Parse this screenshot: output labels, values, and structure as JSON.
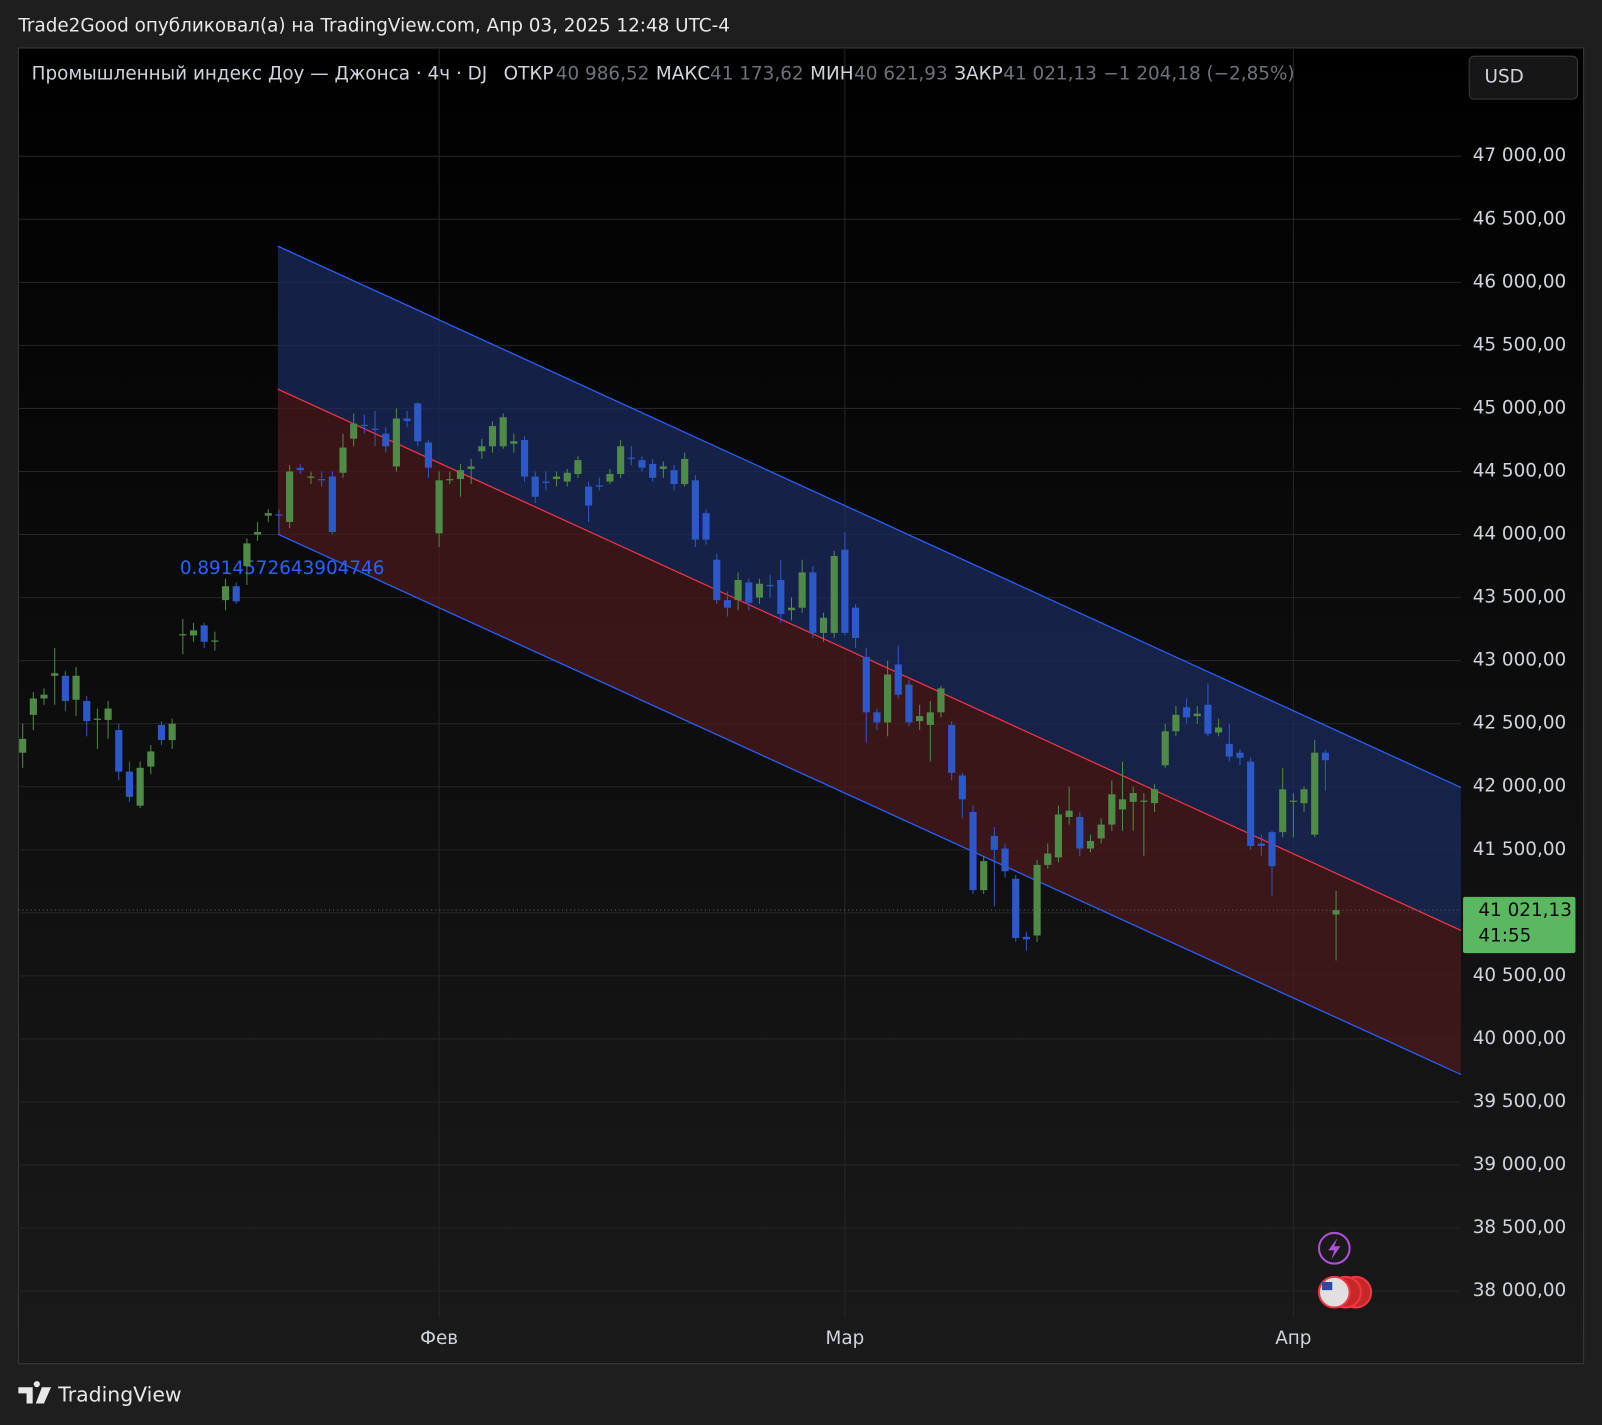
{
  "header": {
    "publisher": "Trade2Good опубликовал(а) на TradingView.com, Апр 03, 2025 12:48 UTC-4",
    "currency_button": "USD",
    "footer_brand": "TradingView"
  },
  "chart_data": {
    "type": "candlestick",
    "legend": {
      "symbol": "Промышленный индекс Доу — Джонса · 4ч · DJ",
      "open_label": "ОТКР",
      "open": "40 986,52",
      "high_label": "МАКС",
      "high": "41 173,62",
      "low_label": "МИН",
      "low": "40 621,93",
      "close_label": "ЗАКР",
      "close": "41 021,13",
      "change": "−1 204,18 (−2,85%)"
    },
    "x": [
      0,
      1,
      2,
      3,
      4,
      5,
      6,
      7,
      8,
      9,
      10,
      11,
      12,
      13,
      14,
      15,
      16,
      17,
      18,
      19,
      20,
      21,
      22,
      23,
      24,
      25,
      26,
      27,
      28,
      29,
      30,
      31,
      32,
      33,
      34,
      35,
      36,
      37,
      38,
      39,
      40,
      41,
      42,
      43,
      44,
      45,
      46,
      47,
      48,
      49,
      50,
      51,
      52,
      53,
      54,
      55,
      56,
      57,
      58,
      59,
      60,
      61,
      62,
      63,
      64,
      65,
      66,
      67,
      68,
      69,
      70,
      71,
      72,
      73,
      74,
      75,
      76,
      77,
      78,
      79,
      80,
      81,
      82,
      83,
      84,
      85,
      86,
      87,
      88,
      89,
      90,
      91,
      92,
      93,
      94,
      95,
      96,
      97,
      98,
      99,
      100,
      101,
      102,
      103,
      104,
      105,
      106,
      107,
      108,
      109,
      110,
      111,
      112,
      113,
      114,
      115,
      116,
      117,
      118,
      119,
      120,
      121,
      122,
      123
    ],
    "open": [
      42270,
      42570,
      42700,
      42880,
      42880,
      42690,
      42680,
      42530,
      42530,
      42450,
      42120,
      41850,
      42160,
      42490,
      42370,
      43200,
      43200,
      43280,
      43150,
      43480,
      43590,
      43750,
      44000,
      44150,
      44160,
      44100,
      44530,
      44450,
      44440,
      44460,
      44490,
      44760,
      44870,
      44840,
      44800,
      44540,
      44920,
      45040,
      44730,
      44010,
      44430,
      44440,
      44520,
      44660,
      44700,
      44700,
      44720,
      44750,
      44460,
      44420,
      44440,
      44420,
      44480,
      44380,
      44390,
      44420,
      44480,
      44610,
      44590,
      44560,
      44520,
      44510,
      44400,
      44430,
      44170,
      43800,
      43480,
      43480,
      43620,
      43500,
      43600,
      43640,
      43400,
      43420,
      43700,
      43220,
      43220,
      43880,
      43420,
      43030,
      42590,
      42510,
      42970,
      42810,
      42520,
      42490,
      42590,
      42490,
      42090,
      41800,
      41180,
      41610,
      41510,
      41270,
      40810,
      40820,
      41380,
      41440,
      41760,
      41760,
      41510,
      41590,
      41700,
      41820,
      41880,
      41880,
      41870,
      42170,
      42440,
      42630,
      42560,
      42650,
      42430,
      42340,
      42270,
      42200,
      41550,
      41640,
      41640,
      41880,
      41870,
      41620,
      42270,
      40986.52
    ],
    "high": [
      42500,
      42750,
      42780,
      43100,
      42920,
      42950,
      42720,
      42620,
      42680,
      42500,
      42200,
      42200,
      42330,
      42520,
      42540,
      43330,
      43300,
      43300,
      43230,
      43650,
      43620,
      43970,
      44100,
      44200,
      44200,
      44550,
      44560,
      44500,
      44500,
      44500,
      44800,
      44960,
      44950,
      44980,
      44850,
      45000,
      44980,
      45050,
      44750,
      44500,
      44500,
      44560,
      44600,
      44760,
      44900,
      44960,
      44800,
      44780,
      44500,
      44500,
      44500,
      44520,
      44620,
      44420,
      44450,
      44520,
      44750,
      44700,
      44620,
      44600,
      44580,
      44550,
      44650,
      44470,
      44200,
      43850,
      43550,
      43700,
      43650,
      43650,
      43680,
      43800,
      43500,
      43800,
      43750,
      43380,
      43870,
      44020,
      43450,
      43100,
      42620,
      43000,
      43120,
      42850,
      42650,
      42680,
      42800,
      42520,
      42110,
      41850,
      41450,
      41680,
      41550,
      41300,
      40850,
      41420,
      41550,
      41850,
      42000,
      41800,
      41620,
      41750,
      42050,
      42200,
      42000,
      41950,
      42020,
      42500,
      42640,
      42700,
      42640,
      42820,
      42540,
      42500,
      42300,
      42230,
      41620,
      41650,
      42150,
      41950,
      42000,
      42370,
      42290,
      41173.62
    ],
    "low": [
      42150,
      42450,
      42650,
      42650,
      42600,
      42560,
      42400,
      42300,
      42380,
      42050,
      41880,
      41830,
      42100,
      42330,
      42300,
      43050,
      43150,
      43100,
      43080,
      43400,
      43450,
      43600,
      43950,
      44100,
      44000,
      44050,
      44480,
      44400,
      44380,
      44000,
      44450,
      44700,
      44800,
      44700,
      44650,
      44500,
      44850,
      44700,
      44450,
      43900,
      44400,
      44300,
      44400,
      44600,
      44650,
      44680,
      44650,
      44420,
      44250,
      44350,
      44380,
      44380,
      44450,
      44100,
      44350,
      44400,
      44450,
      44550,
      44500,
      44420,
      44450,
      44350,
      44380,
      43900,
      43920,
      43450,
      43350,
      43400,
      43400,
      43450,
      43500,
      43300,
      43320,
      43380,
      43180,
      43150,
      43180,
      43200,
      43100,
      42350,
      42450,
      42400,
      42700,
      42480,
      42450,
      42200,
      42550,
      42050,
      41750,
      41150,
      41150,
      41050,
      41280,
      40770,
      40700,
      40770,
      41350,
      41400,
      41700,
      41450,
      41480,
      41550,
      41650,
      41650,
      41650,
      41450,
      41800,
      42150,
      42400,
      42500,
      42500,
      42400,
      42400,
      42200,
      42170,
      41500,
      41450,
      41130,
      41600,
      41600,
      41800,
      41600,
      41970,
      40621.93
    ],
    "close": [
      42380,
      42700,
      42730,
      42900,
      42680,
      42880,
      42520,
      42540,
      42620,
      42120,
      41920,
      42150,
      42280,
      42370,
      42500,
      43210,
      43240,
      43150,
      43160,
      43590,
      43470,
      43930,
      44020,
      44170,
      44150,
      44500,
      44510,
      44460,
      44430,
      44020,
      44690,
      44880,
      44860,
      44830,
      44700,
      44920,
      44900,
      44740,
      44530,
      44430,
      44440,
      44510,
      44540,
      44700,
      44860,
      44930,
      44740,
      44460,
      44300,
      44410,
      44460,
      44490,
      44590,
      44230,
      44380,
      44480,
      44700,
      44600,
      44530,
      44450,
      44540,
      44400,
      44600,
      43960,
      43960,
      43480,
      43420,
      43640,
      43460,
      43610,
      43590,
      43370,
      43420,
      43700,
      43220,
      43340,
      43830,
      43220,
      43180,
      42590,
      42510,
      42890,
      42730,
      42510,
      42560,
      42590,
      42780,
      42110,
      41900,
      41180,
      41410,
      41500,
      41330,
      40800,
      40790,
      41380,
      41470,
      41780,
      41810,
      41510,
      41570,
      41700,
      41940,
      41900,
      41950,
      41890,
      41980,
      42440,
      42570,
      42550,
      42580,
      42420,
      42470,
      42240,
      42230,
      41530,
      41530,
      41370,
      41980,
      41890,
      41980,
      42270,
      42210,
      41021.13
    ],
    "up_color": "#4f8a47",
    "down_color": "#2d58c8",
    "xlim": [
      -0.4,
      134.7
    ],
    "xticks": [
      {
        "value": 39,
        "label": "Фев"
      },
      {
        "value": 77,
        "label": "Мар"
      },
      {
        "value": 119,
        "label": "Апр"
      }
    ],
    "ylim": [
      37789,
      47429
    ],
    "yticks": [
      {
        "value": 38000,
        "label": "38 000,00"
      },
      {
        "value": 38500,
        "label": "38 500,00"
      },
      {
        "value": 39000,
        "label": "39 000,00"
      },
      {
        "value": 39500,
        "label": "39 500,00"
      },
      {
        "value": 40000,
        "label": "40 000,00"
      },
      {
        "value": 40500,
        "label": "40 500,00"
      },
      {
        "value": 41000,
        "label": "41 000,00"
      },
      {
        "value": 41500,
        "label": "41 500,00"
      },
      {
        "value": 42000,
        "label": "42 000,00"
      },
      {
        "value": 42500,
        "label": "42 500,00"
      },
      {
        "value": 43000,
        "label": "43 000,00"
      },
      {
        "value": 43500,
        "label": "43 500,00"
      },
      {
        "value": 44000,
        "label": "44 000,00"
      },
      {
        "value": 44500,
        "label": "44 500,00"
      },
      {
        "value": 45000,
        "label": "45 000,00"
      },
      {
        "value": 45500,
        "label": "45 500,00"
      },
      {
        "value": 46000,
        "label": "46 000,00"
      },
      {
        "value": 46500,
        "label": "46 500,00"
      },
      {
        "value": 47000,
        "label": "47 000,00"
      }
    ],
    "grid": true,
    "channel": {
      "x": [
        23.9,
        134.7
      ],
      "upper": [
        46287,
        41994
      ],
      "middle": [
        45153,
        40860
      ],
      "lower": [
        44003,
        39718
      ],
      "label": "0.8914572643904746",
      "line_color": "#2962ff",
      "middle_color": "#f23645",
      "upper_fill": "#1b2a5e",
      "lower_fill": "#4a1a1e"
    },
    "last_price": {
      "value": 41021.13,
      "label": "41 021,13",
      "countdown": "41:55",
      "color": "#5cb860"
    }
  }
}
